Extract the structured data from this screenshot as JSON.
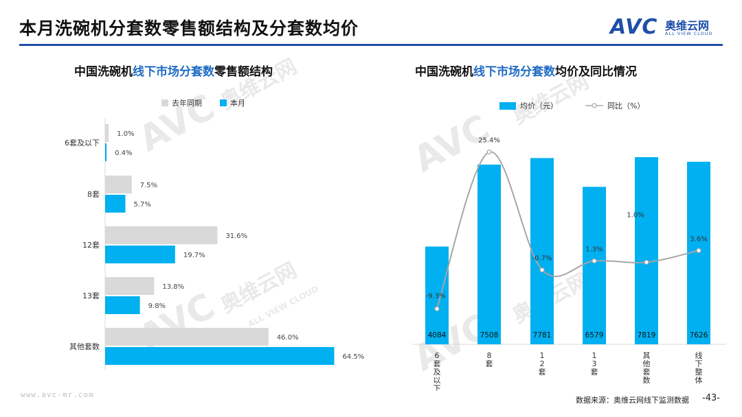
{
  "header": {
    "title": "本月洗碗机分套数零售额结构及分套数均价",
    "logo_mark": "AVC",
    "logo_cn": "奥维云网",
    "logo_en": "ALL VIEW CLOUD"
  },
  "watermark": {
    "mark": "AVC",
    "cn": "奥维云网",
    "en": "ALL VIEW CLOUD"
  },
  "colors": {
    "current": "#00b0f0",
    "last_year": "#d9d9d9",
    "line": "#a6a6a6",
    "brand": "#1f4fa8",
    "highlight": "#1f6bc4"
  },
  "left_chart": {
    "title_pre": "中国洗碗机",
    "title_hl": "线下市场分套数",
    "title_post": "零售额结构",
    "legend": [
      "去年同期",
      "本月"
    ]
  },
  "right_chart": {
    "title_pre": "中国洗碗机",
    "title_hl": "线下市场分套数",
    "title_post": "均价及同比情况",
    "legend": [
      "均价（元）",
      "同比（%）"
    ]
  },
  "chart_data": [
    {
      "type": "bar",
      "orientation": "horizontal",
      "categories": [
        "6套及以下",
        "8套",
        "12套",
        "13套",
        "其他套数"
      ],
      "series": [
        {
          "name": "去年同期",
          "values": [
            1.0,
            7.5,
            31.6,
            13.8,
            46.0
          ],
          "labels": [
            "1.0%",
            "7.5%",
            "31.6%",
            "13.8%",
            "46.0%"
          ]
        },
        {
          "name": "本月",
          "values": [
            0.4,
            5.7,
            19.7,
            9.8,
            64.5
          ],
          "labels": [
            "0.4%",
            "5.7%",
            "19.7%",
            "9.8%",
            "64.5%"
          ]
        }
      ],
      "unit": "%"
    },
    {
      "type": "bar",
      "combo": "bar+line",
      "categories": [
        "6套及以下",
        "8套",
        "12套",
        "13套",
        "其他套数",
        "线下整体"
      ],
      "series": [
        {
          "name": "均价（元）",
          "type": "bar",
          "values": [
            4084,
            7508,
            7781,
            6579,
            7819,
            7626
          ],
          "labels": [
            "4084",
            "7508",
            "7781",
            "6579",
            "7819",
            "7626"
          ]
        },
        {
          "name": "同比（%）",
          "type": "line",
          "values": [
            -9.3,
            25.4,
            -0.7,
            1.3,
            1.0,
            3.6
          ],
          "labels": [
            "-9.3%",
            "25.4%",
            "-0.7%",
            "1.3%",
            "1.0%",
            "3.6%"
          ]
        }
      ]
    }
  ],
  "footer": {
    "url": "www.avc-mr.com",
    "source": "数据来源：奥维云网线下监测数据",
    "page": "-43-"
  }
}
